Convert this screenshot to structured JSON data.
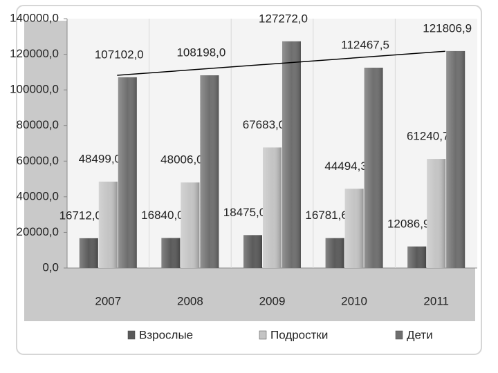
{
  "chart_data": {
    "type": "bar",
    "categories": [
      "2007",
      "2008",
      "2009",
      "2010",
      "2011"
    ],
    "series": [
      {
        "name": "Взрослые",
        "color": "#5a5a5a",
        "values": [
          16712.0,
          16840.0,
          18475.0,
          16781.6,
          12086.9
        ],
        "value_labels": [
          "16712,0",
          "16840,0",
          "18475,0",
          "16781,6",
          "12086,9"
        ]
      },
      {
        "name": "Подростки",
        "color": "#c4c4c4",
        "values": [
          48499.0,
          48006.0,
          67683.0,
          44494.3,
          61240.7
        ],
        "value_labels": [
          "48499,0",
          "48006,0",
          "67683,0",
          "44494,3",
          "61240,7"
        ]
      },
      {
        "name": "Дети",
        "color": "#6e6e6e",
        "values": [
          107102.0,
          108198.0,
          127272.0,
          112467.5,
          121806.9
        ],
        "value_labels": [
          "107102,0",
          "108198,0",
          "127272,0",
          "112467,5",
          "121806,9"
        ],
        "trendline": true
      }
    ],
    "ylim": [
      0,
      140000
    ],
    "yticks": [
      {
        "value": 0,
        "label": "0,0"
      },
      {
        "value": 20000,
        "label": "20000,0"
      },
      {
        "value": 40000,
        "label": "40000,0"
      },
      {
        "value": 60000,
        "label": "60000,0"
      },
      {
        "value": 80000,
        "label": "80000,0"
      },
      {
        "value": 100000,
        "label": "100000,0"
      },
      {
        "value": 120000,
        "label": "120000,0"
      },
      {
        "value": 140000,
        "label": "140000,0"
      }
    ],
    "legend": "bottom"
  }
}
